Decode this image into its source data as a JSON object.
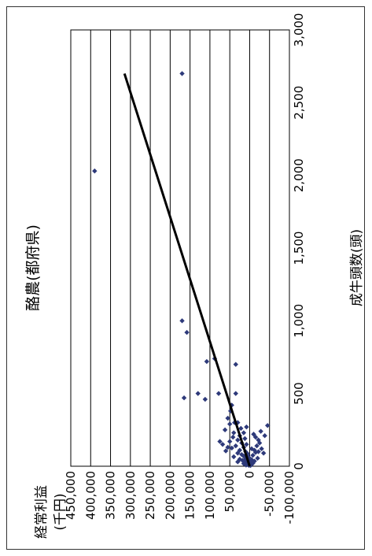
{
  "chart_data": {
    "type": "scatter",
    "title": "酪農(都府県)",
    "xlabel": "成牛頭数(頭)",
    "ylabel": "経常利益\n(千円)",
    "ylabel_lines": [
      "経常利益",
      "(千円)"
    ],
    "xlim": [
      0,
      3000
    ],
    "ylim": [
      -100000,
      450000
    ],
    "x_ticks": [
      0,
      500,
      1000,
      1500,
      2000,
      2500,
      3000
    ],
    "x_tick_labels": [
      "0",
      "500",
      "1,000",
      "1,500",
      "2,000",
      "2,500",
      "3,000"
    ],
    "y_ticks": [
      450000,
      400000,
      350000,
      300000,
      250000,
      200000,
      150000,
      100000,
      50000,
      0,
      -50000,
      -100000
    ],
    "y_tick_labels": [
      "450,000",
      "400,000",
      "350,000",
      "300,000",
      "250,000",
      "200,000",
      "150,000",
      "100,000",
      "50,000",
      "0",
      "-50,000",
      "-100,000"
    ],
    "negative_tick_color": "#e8202a",
    "marker_color": "#2e3a7a",
    "trend_color": "#000000",
    "grid": true,
    "orientation": "rotated-90-ccw",
    "trendline": {
      "x": [
        0,
        2700
      ],
      "y": [
        0,
        315000
      ]
    },
    "points": [
      [
        2700,
        170000
      ],
      [
        2030,
        390000
      ],
      [
        1000,
        170000
      ],
      [
        920,
        158000
      ],
      [
        720,
        108000
      ],
      [
        740,
        88000
      ],
      [
        500,
        130000
      ],
      [
        460,
        112000
      ],
      [
        470,
        165000
      ],
      [
        500,
        78000
      ],
      [
        700,
        35000
      ],
      [
        500,
        35000
      ],
      [
        300,
        30000
      ],
      [
        280,
        -45000
      ],
      [
        240,
        -28000
      ],
      [
        420,
        45000
      ],
      [
        380,
        48000
      ],
      [
        330,
        55000
      ],
      [
        300,
        38000
      ],
      [
        260,
        22000
      ],
      [
        250,
        62000
      ],
      [
        230,
        40000
      ],
      [
        210,
        25000
      ],
      [
        200,
        42000
      ],
      [
        190,
        12000
      ],
      [
        180,
        30000
      ],
      [
        170,
        50000
      ],
      [
        160,
        20000
      ],
      [
        150,
        8000
      ],
      [
        140,
        35000
      ],
      [
        130,
        15000
      ],
      [
        125,
        45000
      ],
      [
        120,
        -5000
      ],
      [
        110,
        25000
      ],
      [
        105,
        60000
      ],
      [
        100,
        10000
      ],
      [
        95,
        -15000
      ],
      [
        90,
        30000
      ],
      [
        85,
        5000
      ],
      [
        80,
        20000
      ],
      [
        75,
        -8000
      ],
      [
        70,
        15000
      ],
      [
        65,
        40000
      ],
      [
        60,
        2000
      ],
      [
        55,
        -20000
      ],
      [
        50,
        10000
      ],
      [
        48,
        25000
      ],
      [
        45,
        -5000
      ],
      [
        40,
        18000
      ],
      [
        38,
        5000
      ],
      [
        35,
        -12000
      ],
      [
        32,
        8000
      ],
      [
        30,
        30000
      ],
      [
        28,
        -3000
      ],
      [
        25,
        12000
      ],
      [
        22,
        3000
      ],
      [
        20,
        -8000
      ],
      [
        18,
        15000
      ],
      [
        15,
        0
      ],
      [
        12,
        6000
      ],
      [
        10,
        -4000
      ],
      [
        8,
        9000
      ],
      [
        6,
        2000
      ],
      [
        5,
        -2000
      ],
      [
        160,
        -25000
      ],
      [
        140,
        -18000
      ],
      [
        120,
        -30000
      ],
      [
        100,
        -22000
      ],
      [
        90,
        -35000
      ],
      [
        200,
        -15000
      ],
      [
        220,
        -10000
      ],
      [
        180,
        -22000
      ],
      [
        150,
        68000
      ],
      [
        130,
        55000
      ],
      [
        170,
        75000
      ],
      [
        230,
        15000
      ],
      [
        270,
        8000
      ],
      [
        290,
        50000
      ],
      [
        210,
        -38000
      ],
      [
        110,
        -12000
      ]
    ]
  }
}
